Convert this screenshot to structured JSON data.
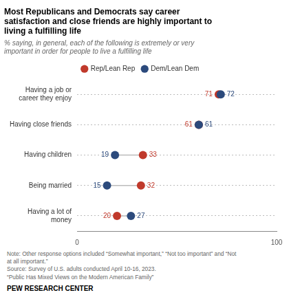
{
  "chart_data": {
    "type": "dot",
    "orientation": "horizontal",
    "title": "Most Republicans and Democrats say career\nsatisfaction and close friends are highly important to\nliving a fulfilling life",
    "subtitle": "% saying, in general, each of the following is extremely or very\nimportant in order for people to live a fulfilling life",
    "categories": [
      "Having a job or\ncareer they enjoy",
      "Having close friends",
      "Having children",
      "Being married",
      "Having a lot of\nmoney"
    ],
    "series": [
      {
        "name": "Rep/Lean Rep",
        "color": "#c0392b",
        "values": [
          71,
          61,
          33,
          32,
          20
        ]
      },
      {
        "name": "Dem/Lean Dem",
        "color": "#2c4a7c",
        "values": [
          72,
          61,
          19,
          15,
          27
        ]
      }
    ],
    "xlim": [
      0,
      100
    ],
    "xticks": [
      0,
      100
    ],
    "grid": true,
    "legend": "top",
    "data_labels": true,
    "annotations": [
      "Note: Other response options included “Somewhat important,” “Not too important” and “Not",
      "at all important.”",
      "Source: Survey of U.S. adults conducted April 10-16, 2023.",
      "“Public Has Mixed Views on the Modern American Family”",
      "PEW RESEARCH CENTER"
    ]
  }
}
